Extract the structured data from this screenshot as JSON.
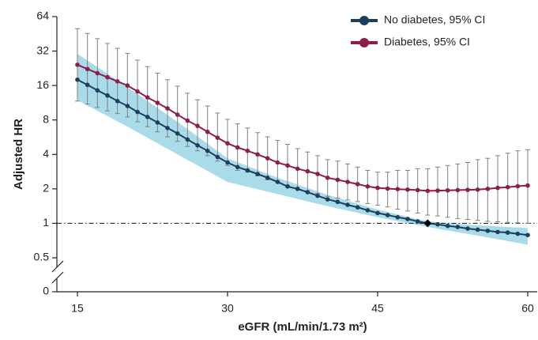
{
  "chart_data": {
    "type": "line",
    "y_label": "Adjusted HR",
    "x_label": "eGFR (mL/min/1.73 m²)",
    "log_y": true,
    "xlim": [
      15,
      60
    ],
    "xticks": [
      15,
      30,
      45,
      60
    ],
    "ylim": [
      0.5,
      64
    ],
    "yticks": [
      0.5,
      1,
      2,
      4,
      8,
      16,
      32,
      64
    ],
    "y_zero_label": "0",
    "reference_line": 1,
    "highlight_point": {
      "x": 50,
      "y": 1
    },
    "legend_position": "upper right",
    "x": [
      15,
      16,
      17,
      18,
      19,
      20,
      21,
      22,
      23,
      24,
      25,
      26,
      27,
      28,
      29,
      30,
      31,
      32,
      33,
      34,
      35,
      36,
      37,
      38,
      39,
      40,
      41,
      42,
      43,
      44,
      45,
      46,
      47,
      48,
      49,
      50,
      51,
      52,
      53,
      54,
      55,
      56,
      57,
      58,
      59,
      60
    ],
    "series": [
      {
        "name": "No diabetes, 95% CI",
        "color": "#1d3f5e",
        "band_color": "#a9dbe9",
        "values": [
          18.0,
          16.2,
          14.5,
          13.1,
          11.7,
          10.6,
          9.4,
          8.5,
          7.6,
          6.8,
          6.1,
          5.4,
          4.8,
          4.3,
          3.8,
          3.4,
          3.1,
          2.9,
          2.7,
          2.5,
          2.3,
          2.1,
          2.0,
          1.87,
          1.74,
          1.62,
          1.54,
          1.45,
          1.38,
          1.3,
          1.23,
          1.18,
          1.13,
          1.09,
          1.04,
          1.0,
          0.98,
          0.95,
          0.93,
          0.9,
          0.88,
          0.86,
          0.84,
          0.83,
          0.81,
          0.79
        ],
        "ci_x": [
          15,
          20,
          25,
          30,
          35,
          40,
          45,
          50,
          55,
          60
        ],
        "ci_upper": [
          30.3,
          15.5,
          7.7,
          3.7,
          2.5,
          1.77,
          1.32,
          1.04,
          0.96,
          0.91
        ],
        "ci_lower": [
          11.9,
          7.0,
          4.0,
          2.3,
          1.8,
          1.41,
          1.13,
          0.93,
          0.78,
          0.65
        ]
      },
      {
        "name": "Diabetes, 95% CI",
        "color": "#8c1d4c",
        "error_color": "#808080",
        "values": [
          24.3,
          22.3,
          20.5,
          18.9,
          17.4,
          16.0,
          14.2,
          12.6,
          11.3,
          10.1,
          8.9,
          7.9,
          7.1,
          6.3,
          5.6,
          5.0,
          4.6,
          4.3,
          4.0,
          3.7,
          3.4,
          3.2,
          3.0,
          2.85,
          2.7,
          2.5,
          2.4,
          2.3,
          2.2,
          2.1,
          2.04,
          2.01,
          1.99,
          1.97,
          1.95,
          1.92,
          1.93,
          1.94,
          1.95,
          1.96,
          1.97,
          2.0,
          2.04,
          2.07,
          2.11,
          2.14
        ],
        "ci_upper": [
          50.2,
          45.6,
          41.1,
          37.3,
          33.8,
          30.5,
          26.7,
          23.4,
          20.5,
          18.0,
          15.8,
          13.7,
          12.0,
          10.6,
          9.2,
          8.1,
          7.4,
          6.8,
          6.2,
          5.7,
          5.3,
          4.9,
          4.5,
          4.2,
          3.9,
          3.6,
          3.5,
          3.3,
          3.1,
          2.9,
          2.8,
          2.8,
          2.9,
          2.9,
          3.0,
          3.0,
          3.1,
          3.2,
          3.3,
          3.4,
          3.6,
          3.7,
          3.9,
          4.1,
          4.3,
          4.4
        ],
        "ci_lower": [
          11.7,
          11.0,
          10.3,
          9.6,
          9.1,
          8.5,
          7.7,
          7.0,
          6.3,
          5.7,
          5.2,
          4.7,
          4.3,
          3.9,
          3.5,
          3.2,
          2.9,
          2.8,
          2.6,
          2.4,
          2.3,
          2.1,
          2.0,
          1.92,
          1.82,
          1.72,
          1.66,
          1.6,
          1.55,
          1.49,
          1.44,
          1.39,
          1.33,
          1.28,
          1.23,
          1.18,
          1.16,
          1.13,
          1.1,
          1.08,
          1.06,
          1.04,
          1.03,
          1.02,
          1.01,
          1.0
        ]
      }
    ]
  }
}
